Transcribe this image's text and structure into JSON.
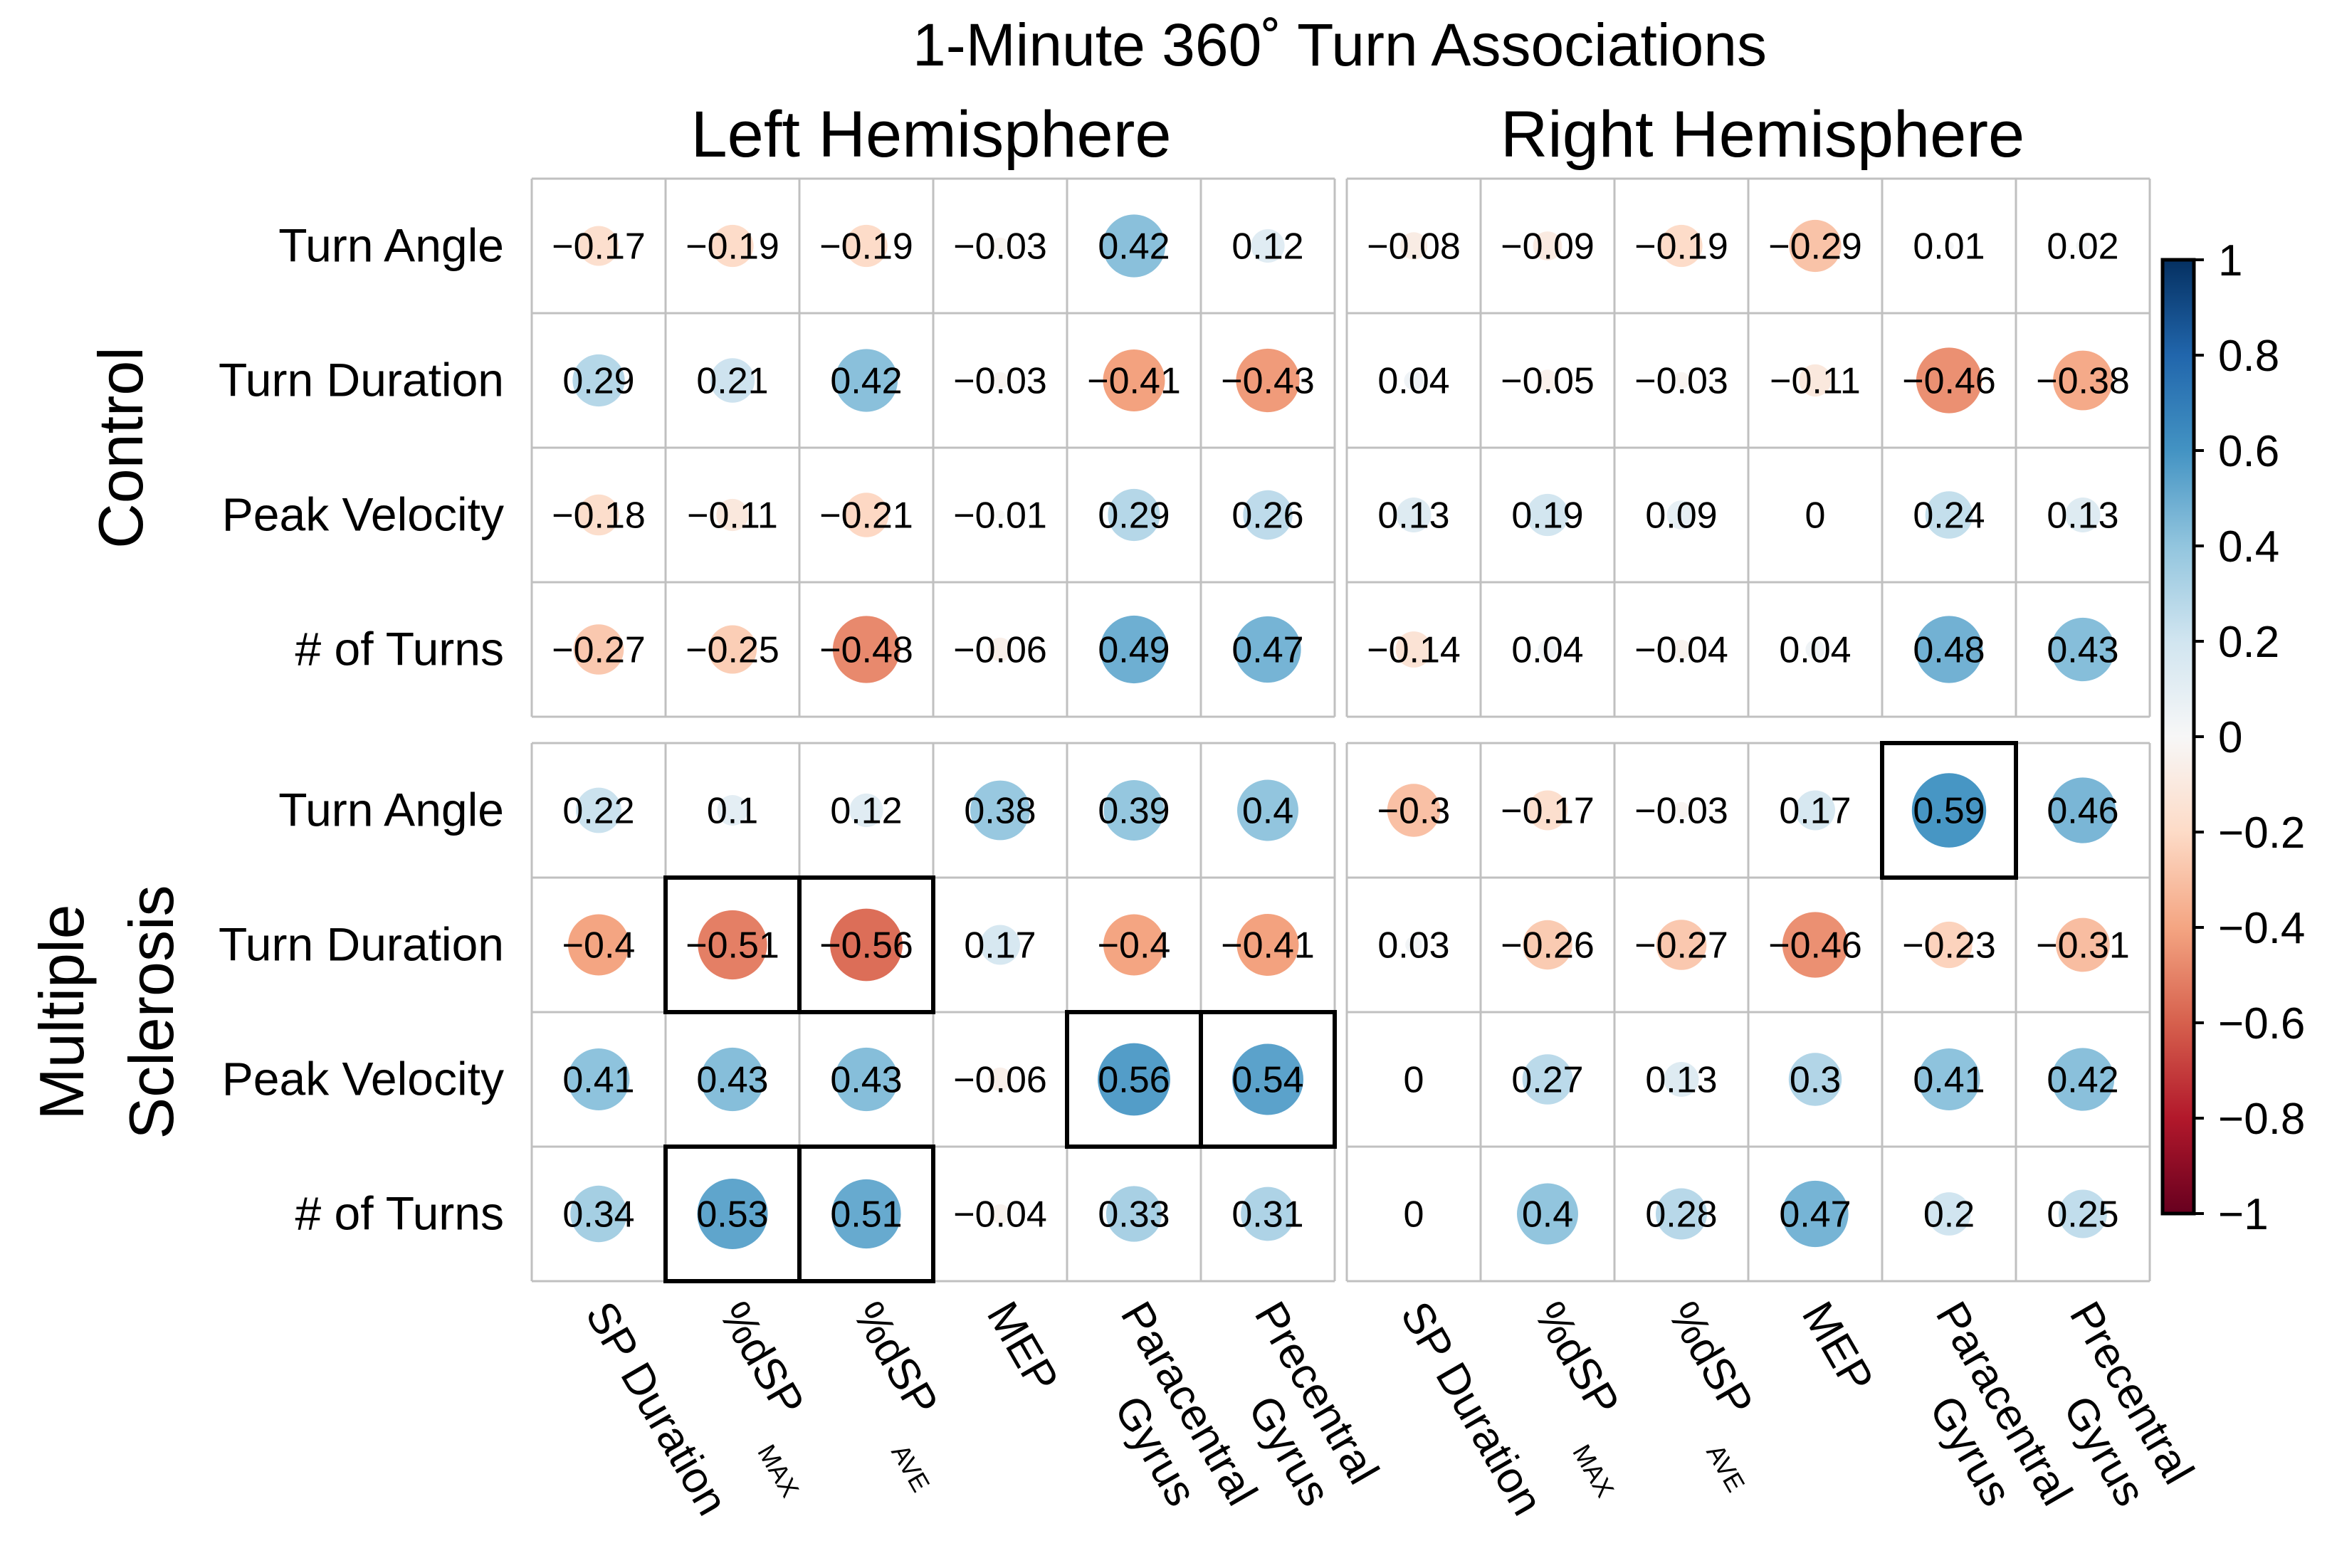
{
  "chart_data": {
    "type": "heatmap",
    "title": "1-Minute 360˚ Turn Associations",
    "hemispheres": [
      "Left Hemisphere",
      "Right Hemisphere"
    ],
    "groups": [
      "Control",
      "Multiple Sclerosis"
    ],
    "group_label_lines": [
      [
        "Control"
      ],
      [
        "Multiple",
        "Sclerosis"
      ]
    ],
    "rows": [
      "Turn Angle",
      "Turn Duration",
      "Peak Velocity",
      "# of Turns"
    ],
    "columns": [
      {
        "main": "SP Duration",
        "line2": "",
        "sub": ""
      },
      {
        "main": "%dSP",
        "line2": "",
        "sub": "MAX"
      },
      {
        "main": "%dSP",
        "line2": "",
        "sub": "AVE"
      },
      {
        "main": "MEP",
        "line2": "",
        "sub": ""
      },
      {
        "main": "Paracentral",
        "line2": "Gyrus",
        "sub": ""
      },
      {
        "main": "Precentral",
        "line2": "Gyrus",
        "sub": ""
      }
    ],
    "values": {
      "Control": {
        "Left Hemisphere": [
          [
            -0.17,
            -0.19,
            -0.19,
            -0.03,
            0.42,
            0.12
          ],
          [
            0.29,
            0.21,
            0.42,
            -0.03,
            -0.41,
            -0.43
          ],
          [
            -0.18,
            -0.11,
            -0.21,
            -0.01,
            0.29,
            0.26
          ],
          [
            -0.27,
            -0.25,
            -0.48,
            -0.06,
            0.49,
            0.47
          ]
        ],
        "Right Hemisphere": [
          [
            -0.08,
            -0.09,
            -0.19,
            -0.29,
            0.01,
            0.02
          ],
          [
            0.04,
            -0.05,
            -0.03,
            -0.11,
            -0.46,
            -0.38
          ],
          [
            0.13,
            0.19,
            0.09,
            0,
            0.24,
            0.13
          ],
          [
            -0.14,
            0.04,
            -0.04,
            0.04,
            0.48,
            0.43
          ]
        ]
      },
      "Multiple Sclerosis": {
        "Left Hemisphere": [
          [
            0.22,
            0.1,
            0.12,
            0.38,
            0.39,
            0.4
          ],
          [
            -0.4,
            -0.51,
            -0.56,
            0.17,
            -0.4,
            -0.41
          ],
          [
            0.41,
            0.43,
            0.43,
            -0.06,
            0.56,
            0.54
          ],
          [
            0.34,
            0.53,
            0.51,
            -0.04,
            0.33,
            0.31
          ]
        ],
        "Right Hemisphere": [
          [
            -0.3,
            -0.17,
            -0.03,
            0.17,
            0.59,
            0.46
          ],
          [
            0.03,
            -0.26,
            -0.27,
            -0.46,
            -0.23,
            -0.31
          ],
          [
            0,
            0.27,
            0.13,
            0.3,
            0.41,
            0.42
          ],
          [
            0,
            0.4,
            0.28,
            0.47,
            0.2,
            0.25
          ]
        ]
      }
    },
    "highlighted_cells": [
      {
        "group": "Multiple Sclerosis",
        "hemisphere": "Left Hemisphere",
        "row": "Turn Duration",
        "column": "%dSP MAX"
      },
      {
        "group": "Multiple Sclerosis",
        "hemisphere": "Left Hemisphere",
        "row": "Turn Duration",
        "column": "%dSP AVE"
      },
      {
        "group": "Multiple Sclerosis",
        "hemisphere": "Left Hemisphere",
        "row": "Peak Velocity",
        "column": "Paracentral Gyrus"
      },
      {
        "group": "Multiple Sclerosis",
        "hemisphere": "Left Hemisphere",
        "row": "Peak Velocity",
        "column": "Precentral Gyrus"
      },
      {
        "group": "Multiple Sclerosis",
        "hemisphere": "Left Hemisphere",
        "row": "# of Turns",
        "column": "%dSP MAX"
      },
      {
        "group": "Multiple Sclerosis",
        "hemisphere": "Left Hemisphere",
        "row": "# of Turns",
        "column": "%dSP AVE"
      },
      {
        "group": "Multiple Sclerosis",
        "hemisphere": "Right Hemisphere",
        "row": "Turn Angle",
        "column": "Paracentral Gyrus"
      }
    ],
    "colorbar": {
      "range": [
        -1,
        1
      ],
      "ticks": [
        1,
        0.8,
        0.6,
        0.4,
        0.2,
        0,
        -0.2,
        -0.4,
        -0.6,
        -0.8,
        -1
      ],
      "colormap": "RdBu",
      "colors": [
        "#67001f",
        "#b2182b",
        "#d6604d",
        "#f4a582",
        "#fddbc7",
        "#f7f7f7",
        "#d1e5f0",
        "#92c5de",
        "#4393c3",
        "#2166ac",
        "#053061"
      ]
    },
    "marker": "circle-area-proportional-to-abs-value",
    "grid": true
  }
}
